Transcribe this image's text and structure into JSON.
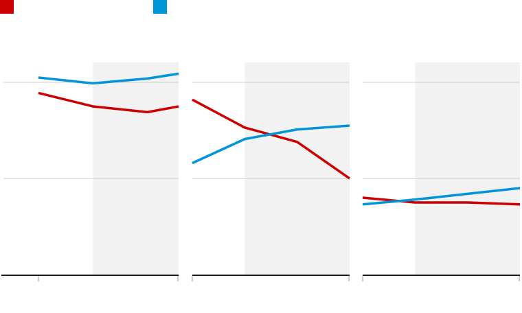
{
  "legend": {
    "placement": "top-left",
    "items": [
      {
        "label": "",
        "color": "#cc0000"
      },
      {
        "label": "",
        "color": "#0095d9"
      }
    ]
  },
  "style": {
    "shade_color": "#f2f2f2",
    "grid_color": "#cccccc",
    "axis_color": "#1a1a1a"
  },
  "chart_data": [
    {
      "type": "line",
      "title": "",
      "xlabel": "",
      "ylabel": "",
      "grid": true,
      "xlim": [
        0,
        4.5
      ],
      "ylim": [
        0,
        2.2
      ],
      "gridlines": [
        1,
        2
      ],
      "xticks": [
        0.9,
        4.5
      ],
      "shaded_x": [
        2.3,
        4.5
      ],
      "series": [
        {
          "name": "",
          "color": "#cc0000",
          "x": [
            0.9,
            2.3,
            3.7,
            4.5
          ],
          "values": [
            1.89,
            1.75,
            1.69,
            1.75
          ]
        },
        {
          "name": "",
          "color": "#0095d9",
          "x": [
            0.9,
            2.3,
            3.7,
            4.5
          ],
          "values": [
            2.05,
            1.99,
            2.04,
            2.09
          ]
        }
      ]
    },
    {
      "type": "line",
      "title": "",
      "xlabel": "",
      "ylabel": "",
      "grid": true,
      "xlim": [
        0,
        3
      ],
      "ylim": [
        0,
        2.2
      ],
      "gridlines": [
        1,
        2
      ],
      "xticks": [
        0,
        3
      ],
      "shaded_x": [
        1,
        3
      ],
      "series": [
        {
          "name": "",
          "color": "#cc0000",
          "x": [
            0,
            1,
            2,
            3
          ],
          "values": [
            1.82,
            1.53,
            1.38,
            1.0
          ]
        },
        {
          "name": "",
          "color": "#0095d9",
          "x": [
            0,
            1,
            2,
            3
          ],
          "values": [
            1.16,
            1.41,
            1.51,
            1.55
          ]
        }
      ]
    },
    {
      "type": "line",
      "title": "",
      "xlabel": "",
      "ylabel": "",
      "grid": true,
      "xlim": [
        0,
        3
      ],
      "ylim": [
        0,
        2.2
      ],
      "gridlines": [
        1,
        2
      ],
      "xticks": [
        0,
        3
      ],
      "shaded_x": [
        1,
        3
      ],
      "series": [
        {
          "name": "",
          "color": "#cc0000",
          "x": [
            0,
            1,
            2,
            3
          ],
          "values": [
            0.8,
            0.75,
            0.75,
            0.73
          ]
        },
        {
          "name": "",
          "color": "#0095d9",
          "x": [
            0,
            1,
            2,
            3
          ],
          "values": [
            0.73,
            0.78,
            0.84,
            0.9
          ]
        }
      ]
    }
  ]
}
